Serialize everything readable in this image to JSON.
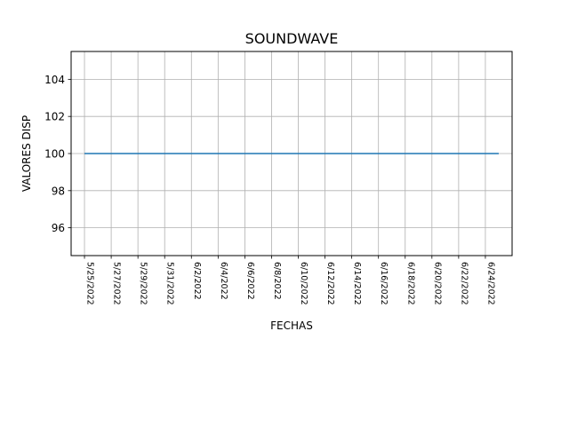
{
  "chart_data": {
    "type": "line",
    "title": "SOUNDWAVE",
    "xlabel": "FECHAS",
    "ylabel": "VALORES DISP",
    "x_ticks": [
      "5/25/2022",
      "5/27/2022",
      "5/29/2022",
      "5/31/2022",
      "6/2/2022",
      "6/4/2022",
      "6/6/2022",
      "6/8/2022",
      "6/10/2022",
      "6/12/2022",
      "6/14/2022",
      "6/16/2022",
      "6/18/2022",
      "6/20/2022",
      "6/22/2022",
      "6/24/2022"
    ],
    "y_ticks": [
      96,
      98,
      100,
      102,
      104
    ],
    "ylim": [
      94.5,
      105.5
    ],
    "xlim": [
      "2022-05-24",
      "2022-06-26"
    ],
    "grid": true,
    "series": [
      {
        "x": [
          "2022-05-25",
          "2022-06-25"
        ],
        "y": [
          100,
          100
        ],
        "color": "#1f77b4"
      }
    ]
  }
}
